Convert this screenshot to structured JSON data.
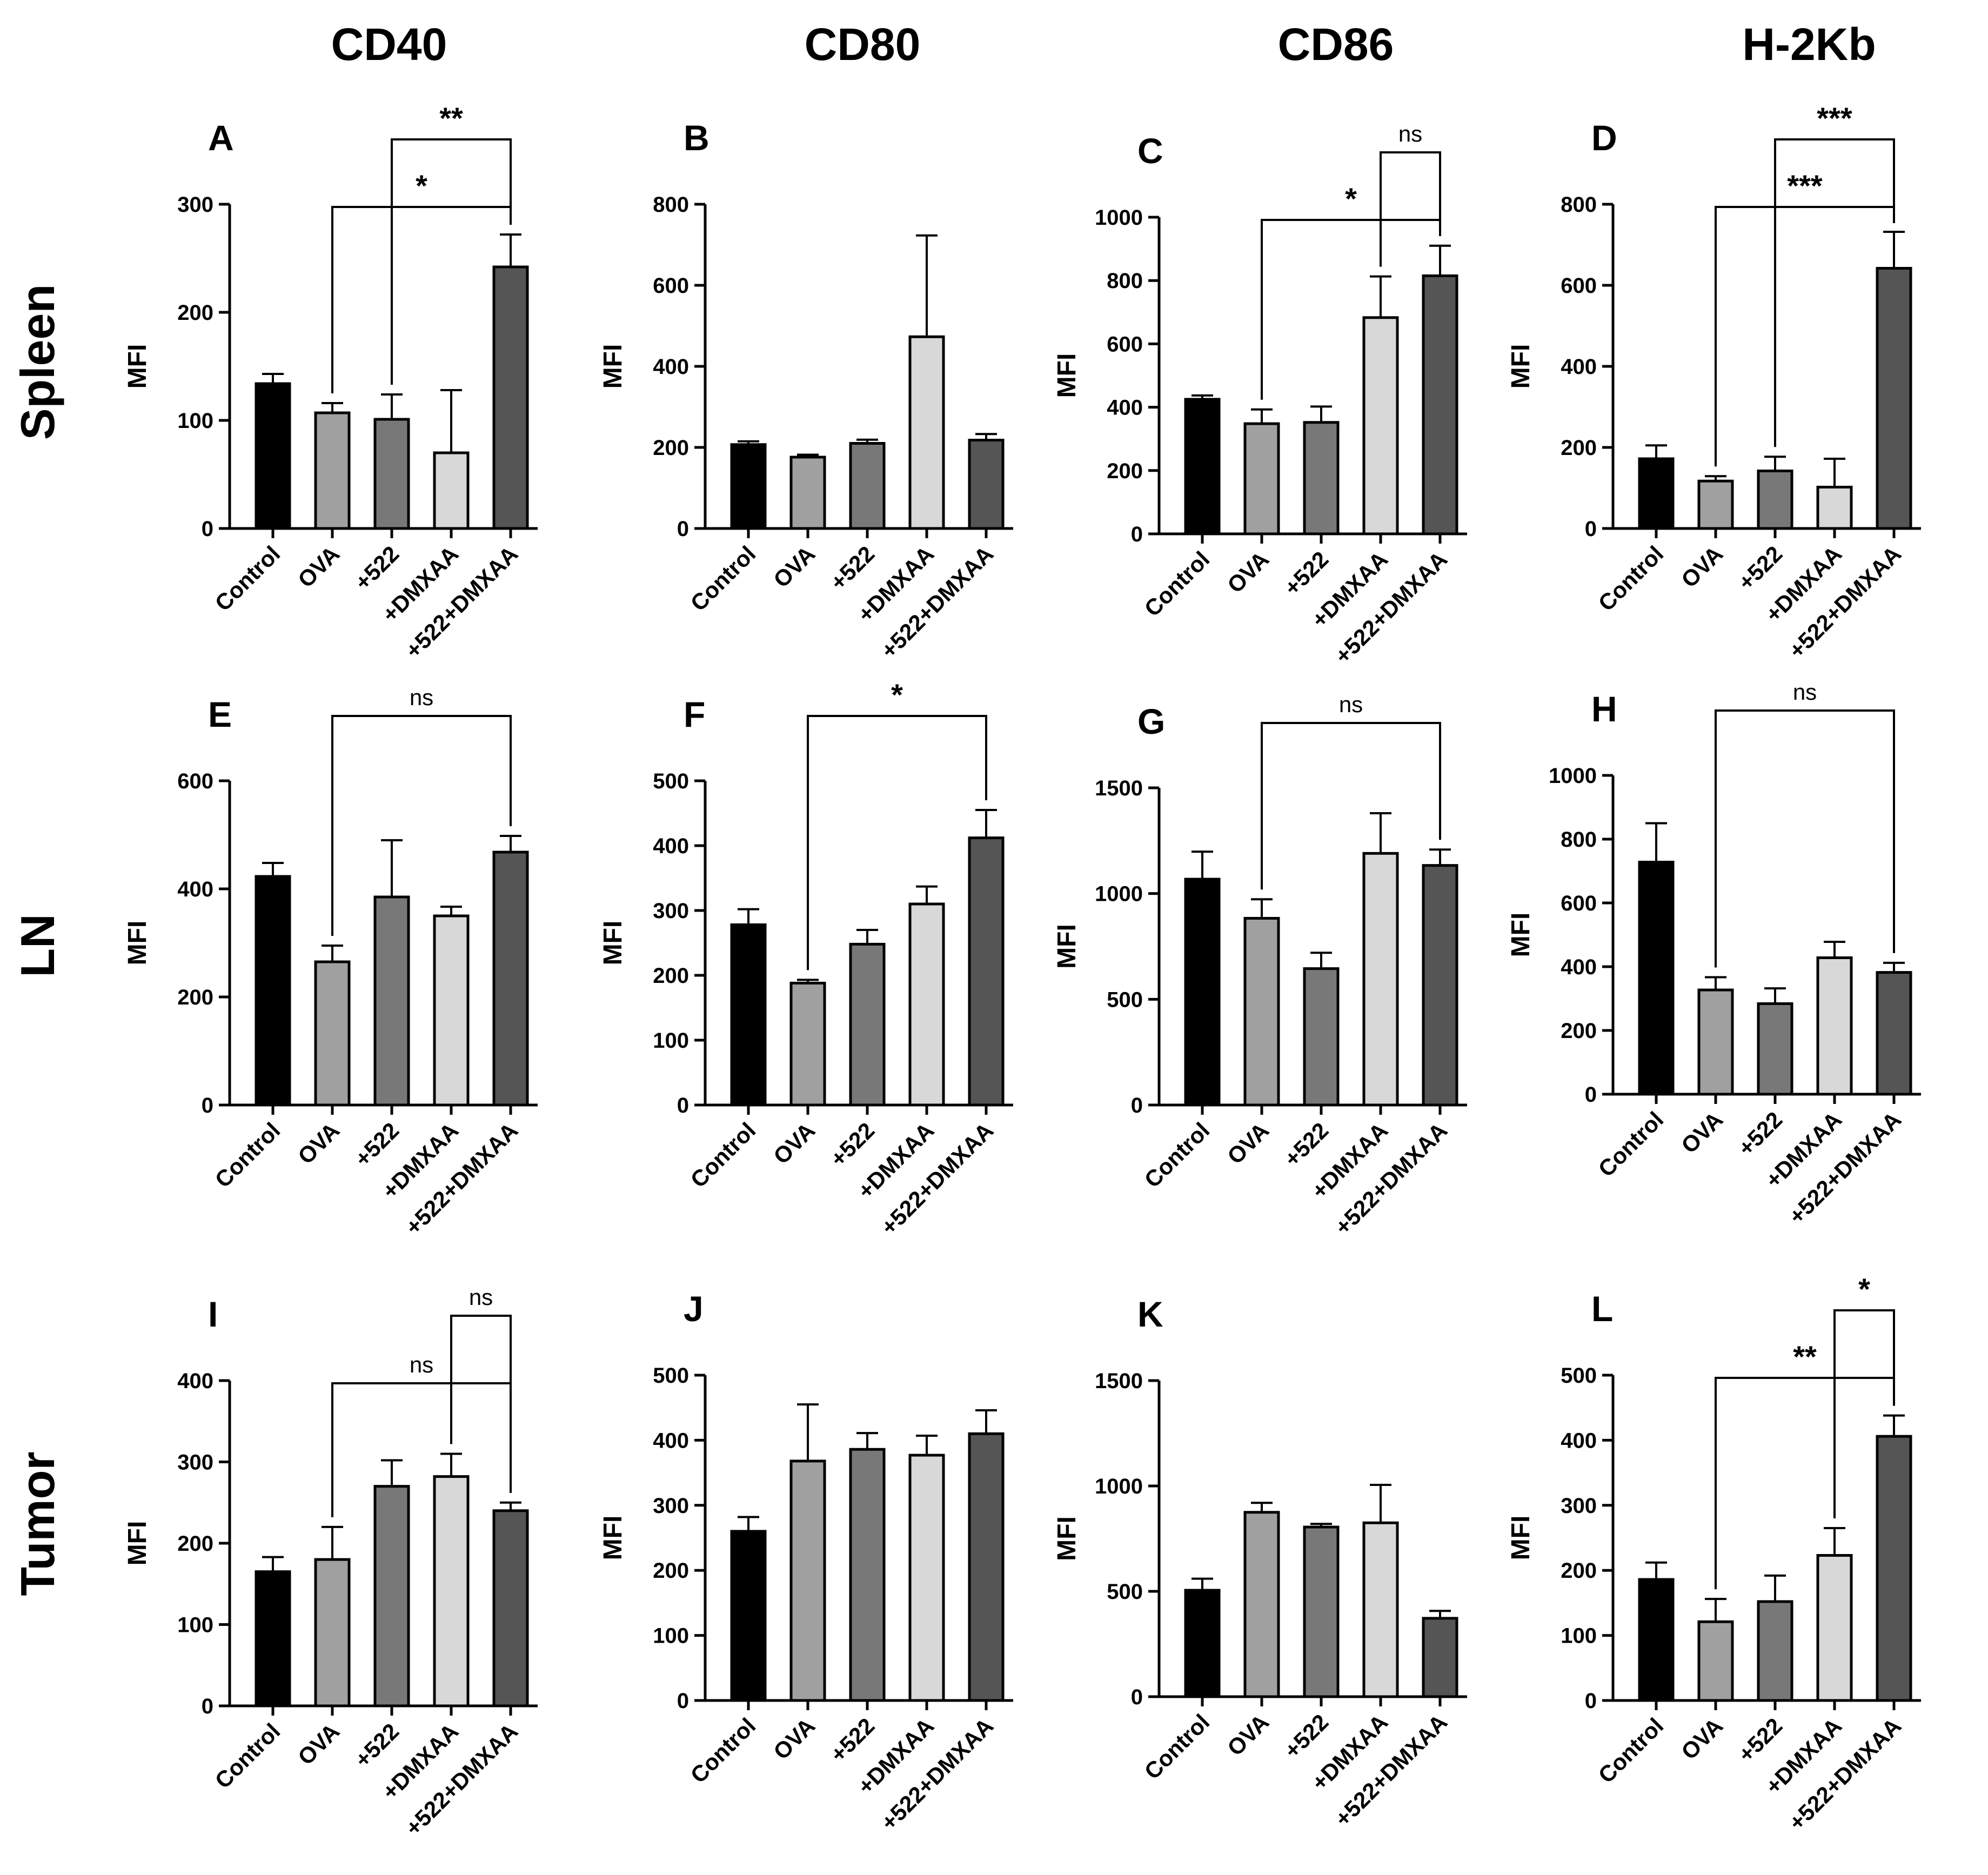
{
  "column_headers": [
    "CD40",
    "CD80",
    "CD86",
    "H-2Kb"
  ],
  "row_labels": [
    "Spleen",
    "LN",
    "Tumor"
  ],
  "bar_colors": [
    "#000000",
    "#a0a0a0",
    "#787878",
    "#d8d8d8",
    "#555555"
  ],
  "chart_data": [
    {
      "panel": "A",
      "type": "bar",
      "title": "CD40",
      "row": "Spleen",
      "ylabel": "MFI",
      "categories": [
        "Control",
        "OVA",
        "+522",
        "+DMXAA",
        "+522+DMXAA"
      ],
      "values": [
        134,
        107,
        101,
        70,
        242
      ],
      "errors": [
        9,
        9,
        23,
        58,
        30
      ],
      "ylim": [
        0,
        300
      ],
      "yticks": [
        0,
        100,
        200,
        300
      ],
      "significance": [
        {
          "from": 1,
          "to": 4,
          "label": "*"
        },
        {
          "from": 2,
          "to": 4,
          "label": "**"
        }
      ]
    },
    {
      "panel": "B",
      "type": "bar",
      "title": "CD80",
      "row": "Spleen",
      "ylabel": "MFI",
      "categories": [
        "Control",
        "OVA",
        "+522",
        "+DMXAA",
        "+522+DMXAA"
      ],
      "values": [
        207,
        176,
        210,
        473,
        218
      ],
      "errors": [
        8,
        6,
        9,
        250,
        15
      ],
      "ylim": [
        0,
        800
      ],
      "yticks": [
        0,
        200,
        400,
        600,
        800
      ],
      "significance": []
    },
    {
      "panel": "C",
      "type": "bar",
      "title": "CD86",
      "row": "Spleen",
      "ylabel": "MFI",
      "categories": [
        "Control",
        "OVA",
        "+522",
        "+DMXAA",
        "+522+DMXAA"
      ],
      "values": [
        425,
        348,
        352,
        683,
        815
      ],
      "errors": [
        12,
        45,
        50,
        130,
        95
      ],
      "ylim": [
        0,
        1000
      ],
      "yticks": [
        0,
        200,
        400,
        600,
        800,
        1000
      ],
      "significance": [
        {
          "from": 1,
          "to": 4,
          "label": "*"
        },
        {
          "from": 3,
          "to": 4,
          "label": "ns"
        }
      ]
    },
    {
      "panel": "D",
      "type": "bar",
      "title": "H-2Kb",
      "row": "Spleen",
      "ylabel": "MFI",
      "categories": [
        "Control",
        "OVA",
        "+522",
        "+DMXAA",
        "+522+DMXAA"
      ],
      "values": [
        172,
        117,
        142,
        102,
        642
      ],
      "errors": [
        33,
        12,
        35,
        70,
        90
      ],
      "ylim": [
        0,
        800
      ],
      "yticks": [
        0,
        200,
        400,
        600,
        800
      ],
      "significance": [
        {
          "from": 1,
          "to": 4,
          "label": "***"
        },
        {
          "from": 2,
          "to": 4,
          "label": "***"
        }
      ]
    },
    {
      "panel": "E",
      "type": "bar",
      "title": "CD40",
      "row": "LN",
      "ylabel": "MFI",
      "categories": [
        "Control",
        "OVA",
        "+522",
        "+DMXAA",
        "+522+DMXAA"
      ],
      "values": [
        423,
        265,
        385,
        350,
        468
      ],
      "errors": [
        25,
        30,
        105,
        17,
        30
      ],
      "ylim": [
        0,
        600
      ],
      "yticks": [
        0,
        200,
        400,
        600
      ],
      "significance": [
        {
          "from": 1,
          "to": 4,
          "label": "ns"
        }
      ]
    },
    {
      "panel": "F",
      "type": "bar",
      "title": "CD80",
      "row": "LN",
      "ylabel": "MFI",
      "categories": [
        "Control",
        "OVA",
        "+522",
        "+DMXAA",
        "+522+DMXAA"
      ],
      "values": [
        278,
        188,
        248,
        310,
        412
      ],
      "errors": [
        24,
        5,
        22,
        27,
        43
      ],
      "ylim": [
        0,
        500
      ],
      "yticks": [
        0,
        100,
        200,
        300,
        400,
        500
      ],
      "significance": [
        {
          "from": 1,
          "to": 4,
          "label": "*"
        }
      ]
    },
    {
      "panel": "G",
      "type": "bar",
      "title": "CD86",
      "row": "LN",
      "ylabel": "MFI",
      "categories": [
        "Control",
        "OVA",
        "+522",
        "+DMXAA",
        "+522+DMXAA"
      ],
      "values": [
        1068,
        883,
        645,
        1190,
        1133
      ],
      "errors": [
        130,
        90,
        75,
        190,
        75
      ],
      "ylim": [
        0,
        1500
      ],
      "yticks": [
        0,
        500,
        1000,
        1500
      ],
      "significance": [
        {
          "from": 1,
          "to": 4,
          "label": "ns"
        }
      ]
    },
    {
      "panel": "H",
      "type": "bar",
      "title": "H-2Kb",
      "row": "LN",
      "ylabel": "MFI",
      "categories": [
        "Control",
        "OVA",
        "+522",
        "+DMXAA",
        "+522+DMXAA"
      ],
      "values": [
        728,
        327,
        284,
        428,
        382
      ],
      "errors": [
        122,
        40,
        48,
        50,
        30
      ],
      "ylim": [
        0,
        1000
      ],
      "yticks": [
        0,
        200,
        400,
        600,
        800,
        1000
      ],
      "significance": [
        {
          "from": 1,
          "to": 4,
          "label": "ns"
        }
      ]
    },
    {
      "panel": "I",
      "type": "bar",
      "title": "CD40",
      "row": "Tumor",
      "ylabel": "MFI",
      "categories": [
        "Control",
        "OVA",
        "+522",
        "+DMXAA",
        "+522+DMXAA"
      ],
      "values": [
        165,
        180,
        270,
        282,
        240
      ],
      "errors": [
        18,
        40,
        32,
        28,
        10
      ],
      "ylim": [
        0,
        400
      ],
      "yticks": [
        0,
        100,
        200,
        300,
        400
      ],
      "significance": [
        {
          "from": 1,
          "to": 4,
          "label": "ns"
        },
        {
          "from": 3,
          "to": 4,
          "label": "ns"
        }
      ]
    },
    {
      "panel": "J",
      "type": "bar",
      "title": "CD80",
      "row": "Tumor",
      "ylabel": "MFI",
      "categories": [
        "Control",
        "OVA",
        "+522",
        "+DMXAA",
        "+522+DMXAA"
      ],
      "values": [
        260,
        368,
        386,
        377,
        410
      ],
      "errors": [
        22,
        87,
        25,
        30,
        36
      ],
      "ylim": [
        0,
        500
      ],
      "yticks": [
        0,
        100,
        200,
        300,
        400,
        500
      ],
      "significance": []
    },
    {
      "panel": "K",
      "type": "bar",
      "title": "CD86",
      "row": "Tumor",
      "ylabel": "MFI",
      "categories": [
        "Control",
        "OVA",
        "+522",
        "+DMXAA",
        "+522+DMXAA"
      ],
      "values": [
        505,
        875,
        805,
        825,
        372
      ],
      "errors": [
        55,
        45,
        15,
        180,
        35
      ],
      "ylim": [
        0,
        1500
      ],
      "yticks": [
        0,
        500,
        1000,
        1500
      ],
      "significance": []
    },
    {
      "panel": "L",
      "type": "bar",
      "title": "H-2Kb",
      "row": "Tumor",
      "ylabel": "MFI",
      "categories": [
        "Control",
        "OVA",
        "+522",
        "+DMXAA",
        "+522+DMXAA"
      ],
      "values": [
        186,
        121,
        152,
        223,
        406
      ],
      "errors": [
        26,
        35,
        40,
        42,
        32
      ],
      "ylim": [
        0,
        500
      ],
      "yticks": [
        0,
        100,
        200,
        300,
        400,
        500
      ],
      "significance": [
        {
          "from": 1,
          "to": 4,
          "label": "**"
        },
        {
          "from": 3,
          "to": 4,
          "label": "*"
        }
      ]
    }
  ]
}
